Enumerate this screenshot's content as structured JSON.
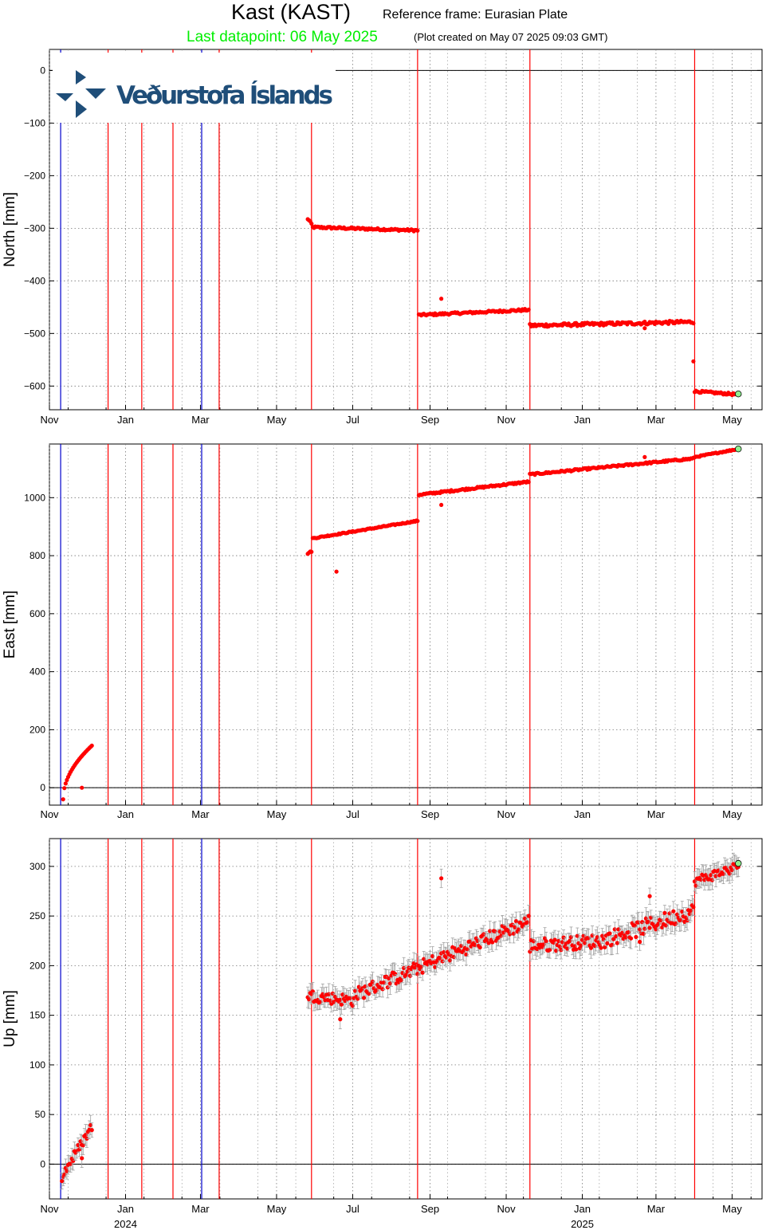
{
  "header": {
    "station": "Kast (KAST)",
    "reference_frame": "Reference frame: Eurasian Plate",
    "last_datapoint": "Last datapoint: 06 May 2025",
    "plot_created": "(Plot created on May 07 2025 09:03 GMT)"
  },
  "logo": {
    "text": "Veðurstofa Íslands",
    "color": "#1f4e79"
  },
  "colors": {
    "data": "#ff0000",
    "last_point": "#90ee90",
    "event_red": "#ff0000",
    "event_blue": "#0000cc",
    "errorbar": "#a0a0a0"
  },
  "x_axis": {
    "domain": [
      "2023-11-01",
      "2025-05-25"
    ],
    "month_ticks": [
      {
        "label": "Nov",
        "date": "2023-11-01"
      },
      {
        "label": "Jan",
        "date": "2024-01-01"
      },
      {
        "label": "Mar",
        "date": "2024-03-01"
      },
      {
        "label": "May",
        "date": "2024-05-01"
      },
      {
        "label": "Jul",
        "date": "2024-07-01"
      },
      {
        "label": "Sep",
        "date": "2024-09-01"
      },
      {
        "label": "Nov",
        "date": "2024-11-01"
      },
      {
        "label": "Jan",
        "date": "2025-01-01"
      },
      {
        "label": "Mar",
        "date": "2025-03-01"
      },
      {
        "label": "May",
        "date": "2025-05-01"
      }
    ],
    "year_labels": [
      {
        "label": "2024",
        "date": "2024-01-01"
      },
      {
        "label": "2025",
        "date": "2025-01-01"
      }
    ]
  },
  "events": {
    "red": [
      "2023-12-18",
      "2024-01-14",
      "2024-02-08",
      "2024-03-16",
      "2024-05-29",
      "2024-08-22",
      "2024-11-20",
      "2025-04-01"
    ],
    "blue": [
      "2023-11-10",
      "2024-03-02"
    ]
  },
  "chart_data": [
    {
      "type": "scatter",
      "name": "north",
      "ylabel": "North [mm]",
      "ylim": [
        -645,
        40
      ],
      "yticks": [
        0,
        -100,
        -200,
        -300,
        -400,
        -500,
        -600
      ],
      "grid": true,
      "zero_line": true,
      "segments": [
        {
          "start": "2023-11-12",
          "end": "2023-11-12",
          "start_value": 20,
          "end_value": 20,
          "step_days": 1,
          "noise": 0
        },
        {
          "start": "2024-05-26",
          "end": "2024-05-29",
          "start_value": -282,
          "end_value": -292,
          "step_days": 1,
          "noise": 2
        },
        {
          "start": "2024-05-30",
          "end": "2024-08-22",
          "start_value": -298,
          "end_value": -304,
          "step_days": 1,
          "noise": 2
        },
        {
          "start": "2024-08-23",
          "end": "2024-11-19",
          "start_value": -465,
          "end_value": -455,
          "step_days": 1,
          "noise": 2
        },
        {
          "start": "2024-11-20",
          "end": "2025-03-31",
          "start_value": -485,
          "end_value": -478,
          "step_days": 1,
          "noise": 3
        },
        {
          "start": "2025-04-01",
          "end": "2025-05-06",
          "start_value": -610,
          "end_value": -616,
          "step_days": 1,
          "noise": 2
        }
      ],
      "outliers": [
        {
          "date": "2024-09-10",
          "value": -434
        },
        {
          "date": "2025-02-20",
          "value": -490
        },
        {
          "date": "2025-03-31",
          "value": -553
        }
      ],
      "last_point": {
        "date": "2025-05-06",
        "value": -615
      }
    },
    {
      "type": "scatter",
      "name": "east",
      "ylabel": "East [mm]",
      "ylim": [
        -60,
        1185
      ],
      "yticks": [
        0,
        200,
        400,
        600,
        800,
        1000
      ],
      "grid": true,
      "zero_line": true,
      "segments": [
        {
          "start": "2023-11-12",
          "end": "2023-12-05",
          "start_value": -40,
          "end_value": 145,
          "step_days": 1,
          "noise": 0,
          "curve": "sqrt"
        },
        {
          "start": "2024-05-26",
          "end": "2024-05-29",
          "start_value": 808,
          "end_value": 815,
          "step_days": 1,
          "noise": 2
        },
        {
          "start": "2024-05-30",
          "end": "2024-08-22",
          "start_value": 860,
          "end_value": 920,
          "step_days": 1,
          "noise": 2
        },
        {
          "start": "2024-08-23",
          "end": "2024-11-19",
          "start_value": 1010,
          "end_value": 1055,
          "step_days": 1,
          "noise": 3
        },
        {
          "start": "2024-11-20",
          "end": "2025-03-31",
          "start_value": 1080,
          "end_value": 1135,
          "step_days": 1,
          "noise": 3
        },
        {
          "start": "2025-04-01",
          "end": "2025-05-06",
          "start_value": 1140,
          "end_value": 1168,
          "step_days": 1,
          "noise": 2
        }
      ],
      "outliers": [
        {
          "date": "2023-11-27",
          "value": 0
        },
        {
          "date": "2024-06-18",
          "value": 745
        },
        {
          "date": "2024-09-10",
          "value": 975
        },
        {
          "date": "2025-02-20",
          "value": 1140
        }
      ],
      "last_point": {
        "date": "2025-05-06",
        "value": 1168
      }
    },
    {
      "type": "scatter",
      "name": "up",
      "ylabel": "Up [mm]",
      "ylim": [
        -35,
        328
      ],
      "yticks": [
        0,
        50,
        100,
        150,
        200,
        250,
        300
      ],
      "grid": true,
      "zero_line": true,
      "errorbars": true,
      "segments": [
        {
          "start": "2023-11-12",
          "end": "2023-12-05",
          "start_value": -10,
          "end_value": 38,
          "step_days": 1,
          "noise": 5
        },
        {
          "start": "2024-05-26",
          "end": "2024-07-01",
          "start_value": 170,
          "end_value": 165,
          "step_days": 1,
          "noise": 6
        },
        {
          "start": "2024-07-02",
          "end": "2024-11-19",
          "start_value": 170,
          "end_value": 245,
          "step_days": 1,
          "noise": 7
        },
        {
          "start": "2024-11-20",
          "end": "2025-01-15",
          "start_value": 220,
          "end_value": 225,
          "step_days": 1,
          "noise": 7
        },
        {
          "start": "2025-01-16",
          "end": "2025-03-31",
          "start_value": 225,
          "end_value": 255,
          "step_days": 1,
          "noise": 8
        },
        {
          "start": "2025-04-01",
          "end": "2025-05-06",
          "start_value": 285,
          "end_value": 300,
          "step_days": 1,
          "noise": 5
        }
      ],
      "outliers": [
        {
          "date": "2023-11-11",
          "value": -17
        },
        {
          "date": "2023-11-27",
          "value": 6
        },
        {
          "date": "2024-06-21",
          "value": 146
        },
        {
          "date": "2024-09-10",
          "value": 288
        },
        {
          "date": "2025-02-16",
          "value": 224
        },
        {
          "date": "2025-02-24",
          "value": 270
        }
      ],
      "last_point": {
        "date": "2025-05-06",
        "value": 303
      }
    }
  ]
}
